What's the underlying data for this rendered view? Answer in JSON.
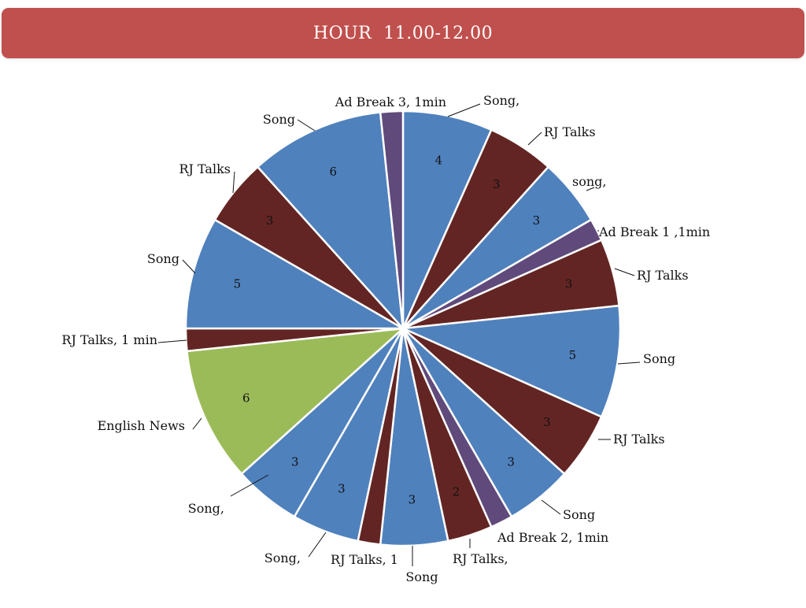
{
  "title": "HOUR  11.00-12.00",
  "chart_data": {
    "type": "pie",
    "start": "top",
    "direction": "clockwise",
    "legend": "none",
    "colors": {
      "song": "#4f81bd",
      "rj": "#632523",
      "ad": "#604a7b",
      "news": "#9bbb59"
    },
    "slices": [
      {
        "label": "Song,",
        "value": 4,
        "value_label": "4",
        "kind": "song"
      },
      {
        "label": "RJ Talks",
        "value": 3,
        "value_label": "3",
        "kind": "rj"
      },
      {
        "label": "song,",
        "value": 3,
        "value_label": "3",
        "kind": "song"
      },
      {
        "label": "Ad Break 1 ,1min",
        "value": 1,
        "value_label": "",
        "kind": "ad"
      },
      {
        "label": "RJ Talks",
        "value": 3,
        "value_label": "3",
        "kind": "rj"
      },
      {
        "label": "Song",
        "value": 5,
        "value_label": "5",
        "kind": "song"
      },
      {
        "label": "RJ Talks",
        "value": 3,
        "value_label": "3",
        "kind": "rj"
      },
      {
        "label": "Song",
        "value": 3,
        "value_label": "3",
        "kind": "song"
      },
      {
        "label": "Ad Break 2, 1min",
        "value": 1,
        "value_label": "",
        "kind": "ad"
      },
      {
        "label": "RJ Talks,",
        "value": 2,
        "value_label": "2",
        "kind": "rj"
      },
      {
        "label": "Song",
        "value": 3,
        "value_label": "3",
        "kind": "song"
      },
      {
        "label": "RJ Talks, 1",
        "value": 1,
        "value_label": "",
        "kind": "rj"
      },
      {
        "label": "Song,",
        "value": 3,
        "value_label": "3",
        "kind": "song"
      },
      {
        "label": "Song,",
        "value": 3,
        "value_label": "3",
        "kind": "song"
      },
      {
        "label": "English News",
        "value": 6,
        "value_label": "6",
        "kind": "news"
      },
      {
        "label": "RJ Talks, 1 min",
        "value": 1,
        "value_label": "",
        "kind": "rj"
      },
      {
        "label": "Song",
        "value": 5,
        "value_label": "5",
        "kind": "song"
      },
      {
        "label": "RJ Talks",
        "value": 3,
        "value_label": "3",
        "kind": "rj"
      },
      {
        "label": "Song",
        "value": 6,
        "value_label": "6",
        "kind": "song"
      },
      {
        "label": "Ad Break 3, 1min",
        "value": 1,
        "value_label": "",
        "kind": "ad"
      }
    ]
  }
}
